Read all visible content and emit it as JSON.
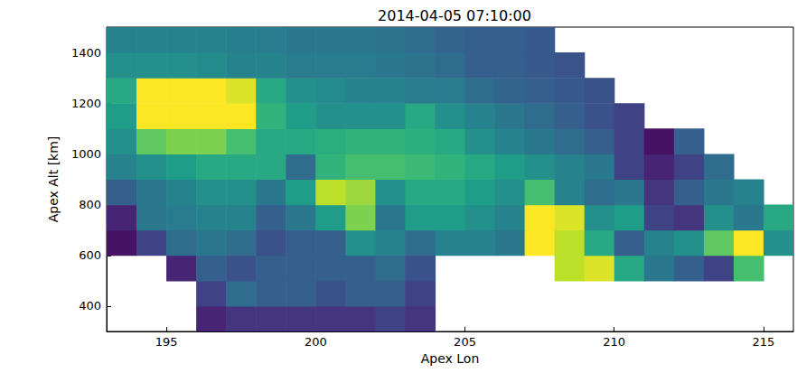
{
  "chart_data": {
    "type": "heatmap",
    "title": "2014-04-05 07:10:00",
    "x_label": "Apex Lon",
    "y_label": "Apex Alt [km]",
    "xlim": [
      193,
      216
    ],
    "ylim": [
      300,
      1500
    ],
    "xticks": [
      195,
      200,
      205,
      210,
      215
    ],
    "yticks": [
      400,
      600,
      800,
      1000,
      1200,
      1400
    ],
    "grid": false,
    "x_edges": [
      193,
      194,
      195,
      196,
      197,
      198,
      199,
      200,
      201,
      202,
      203,
      204,
      205,
      206,
      207,
      208,
      209,
      210,
      211,
      212,
      213,
      214,
      215,
      216
    ],
    "y_edges": [
      300,
      400,
      500,
      600,
      700,
      800,
      900,
      1000,
      1100,
      1200,
      1300,
      1400,
      1500
    ],
    "z_range": [
      0,
      1
    ],
    "z": [
      [
        null,
        null,
        null,
        0.1,
        0.15,
        0.15,
        0.15,
        0.15,
        0.15,
        0.2,
        0.15,
        null,
        null,
        null,
        null,
        null,
        null,
        null,
        null,
        null,
        null,
        null,
        null
      ],
      [
        null,
        null,
        null,
        0.2,
        0.35,
        0.3,
        0.3,
        0.25,
        0.3,
        0.3,
        0.2,
        null,
        null,
        null,
        null,
        null,
        null,
        null,
        null,
        null,
        null,
        null,
        null
      ],
      [
        null,
        null,
        0.1,
        0.3,
        0.25,
        0.3,
        0.3,
        0.3,
        0.3,
        0.35,
        0.25,
        null,
        null,
        null,
        null,
        0.9,
        0.95,
        0.6,
        0.4,
        0.3,
        0.2,
        0.7,
        null
      ],
      [
        0.05,
        0.2,
        0.35,
        0.4,
        0.35,
        0.25,
        0.3,
        0.3,
        0.5,
        0.45,
        0.35,
        0.45,
        0.45,
        0.4,
        1,
        0.9,
        0.6,
        0.3,
        0.45,
        0.5,
        0.75,
        1,
        0.5
      ],
      [
        0.1,
        0.4,
        0.42,
        0.45,
        0.45,
        0.3,
        0.4,
        0.55,
        0.8,
        0.4,
        0.55,
        0.55,
        0.5,
        0.45,
        1,
        0.95,
        0.5,
        0.55,
        0.2,
        0.15,
        0.5,
        0.4,
        0.6
      ],
      [
        0.3,
        0.4,
        0.45,
        0.5,
        0.5,
        0.4,
        0.55,
        0.9,
        0.85,
        0.5,
        0.6,
        0.6,
        0.55,
        0.5,
        0.7,
        0.45,
        0.35,
        0.4,
        0.15,
        0.3,
        0.4,
        0.45,
        null
      ],
      [
        0.45,
        0.5,
        0.55,
        0.6,
        0.6,
        0.6,
        0.35,
        0.65,
        0.7,
        0.7,
        0.68,
        0.65,
        0.6,
        0.55,
        0.5,
        0.45,
        0.4,
        0.2,
        0.1,
        0.2,
        0.35,
        null,
        null
      ],
      [
        0.5,
        0.75,
        0.8,
        0.8,
        0.7,
        0.6,
        0.6,
        0.62,
        0.65,
        0.65,
        0.62,
        0.6,
        0.5,
        0.45,
        0.4,
        0.35,
        0.3,
        0.2,
        0.05,
        0.3,
        null,
        null,
        null
      ],
      [
        0.55,
        1,
        1,
        1,
        1,
        0.65,
        0.55,
        0.5,
        0.5,
        0.5,
        0.6,
        0.5,
        0.45,
        0.4,
        0.35,
        0.3,
        0.25,
        0.2,
        null,
        null,
        null,
        null,
        null
      ],
      [
        0.6,
        1,
        1,
        1,
        0.95,
        0.6,
        0.5,
        0.48,
        0.45,
        0.45,
        0.42,
        0.42,
        0.35,
        0.32,
        0.3,
        0.28,
        0.25,
        null,
        null,
        null,
        null,
        null,
        null
      ],
      [
        0.5,
        0.5,
        0.5,
        0.48,
        0.45,
        0.45,
        0.42,
        0.42,
        0.42,
        0.4,
        0.38,
        0.35,
        0.3,
        0.3,
        0.28,
        0.26,
        null,
        null,
        null,
        null,
        null,
        null,
        null
      ],
      [
        0.45,
        0.45,
        0.45,
        0.45,
        0.43,
        0.42,
        0.4,
        0.4,
        0.4,
        0.38,
        0.35,
        0.32,
        0.3,
        0.3,
        0.28,
        null,
        null,
        null,
        null,
        null,
        null,
        null,
        null
      ]
    ]
  }
}
